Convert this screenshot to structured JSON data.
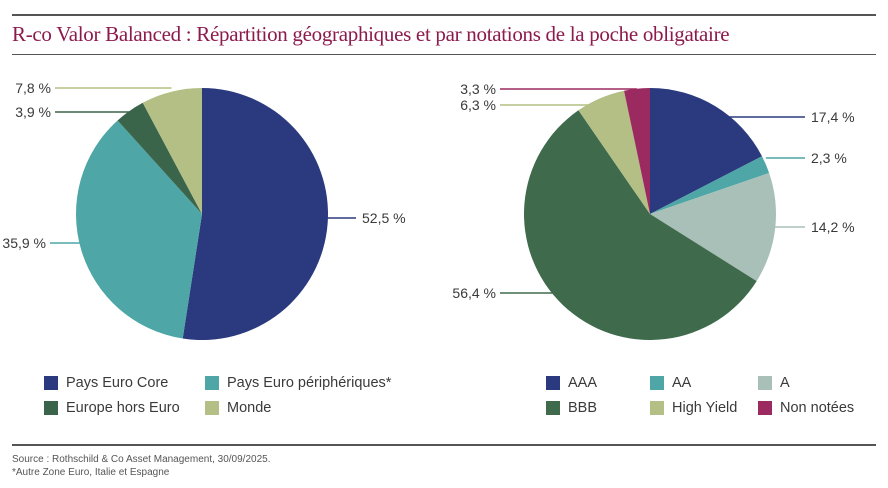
{
  "title": "R-co Valor Balanced : Répartition géographiques et par notations de la poche obligataire",
  "chart_data": [
    {
      "type": "pie",
      "name": "geographic",
      "title": "",
      "start": "12 o'clock, clockwise",
      "slices": [
        {
          "label": "Pays Euro Core",
          "value": 52.5,
          "display": "52,5 %",
          "color": "#2b3a7f"
        },
        {
          "label": "Pays Euro périphériques*",
          "value": 35.9,
          "display": "35,9 %",
          "color": "#4ea6a6"
        },
        {
          "label": "Europe hors Euro",
          "value": 3.9,
          "display": "3,9 %",
          "color": "#3b654a"
        },
        {
          "label": "Monde",
          "value": 7.8,
          "display": "7,8 %",
          "color": "#b3bf84"
        }
      ]
    },
    {
      "type": "pie",
      "name": "rating",
      "title": "",
      "start": "12 o'clock, clockwise",
      "slices": [
        {
          "label": "AAA",
          "value": 17.4,
          "display": "17,4 %",
          "color": "#2b3a7f"
        },
        {
          "label": "AA",
          "value": 2.3,
          "display": "2,3 %",
          "color": "#4ea6a6"
        },
        {
          "label": "A",
          "value": 14.2,
          "display": "14,2 %",
          "color": "#a9c0b8"
        },
        {
          "label": "BBB",
          "value": 56.4,
          "display": "56,4 %",
          "color": "#3f6a4c"
        },
        {
          "label": "High Yield",
          "value": 6.3,
          "display": "6,3 %",
          "color": "#b3bf84"
        },
        {
          "label": "Non notées",
          "value": 3.3,
          "display": "3,3 %",
          "color": "#9b2a60"
        }
      ]
    }
  ],
  "footer": {
    "source": "Source : Rothschild & Co Asset Management, 30/09/2025.",
    "note": "*Autre Zone Euro, Italie et Espagne"
  }
}
